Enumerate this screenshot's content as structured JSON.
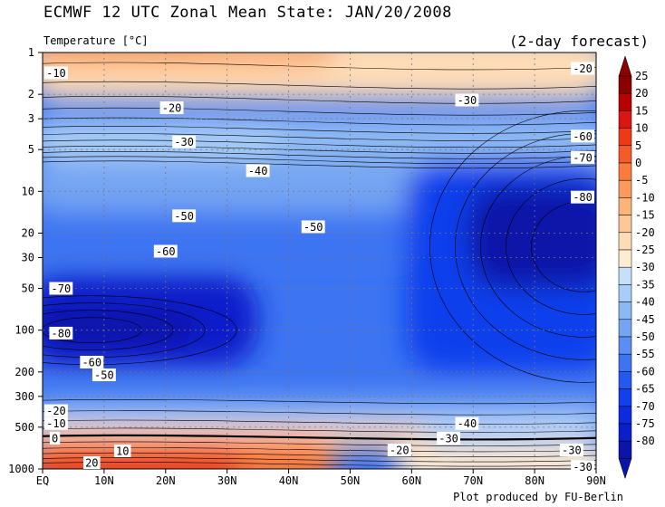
{
  "title": "ECMWF 12 UTC Zonal Mean State: JAN/20/2008",
  "subtitle": "Temperature [°C]",
  "forecast_label": "(2-day forecast)",
  "credit": "Plot produced by FU-Berlin",
  "chart_data": {
    "type": "heatmap",
    "title": "ECMWF 12 UTC Zonal Mean State: JAN/20/2008",
    "variable": "Temperature [°C]",
    "xlabel": "",
    "ylabel": "",
    "x_tick_labels": [
      "EQ",
      "10N",
      "20N",
      "30N",
      "40N",
      "50N",
      "60N",
      "70N",
      "80N",
      "90N"
    ],
    "x_ticks": [
      0,
      10,
      20,
      30,
      40,
      50,
      60,
      70,
      80,
      90
    ],
    "xlim": [
      0,
      90
    ],
    "y_tick_labels": [
      "1",
      "2",
      "3",
      "5",
      "10",
      "20",
      "30",
      "50",
      "100",
      "200",
      "300",
      "500",
      "1000"
    ],
    "y_ticks": [
      1,
      2,
      3,
      5,
      10,
      20,
      30,
      50,
      100,
      200,
      300,
      500,
      1000
    ],
    "ylim": [
      1,
      1000
    ],
    "y_scale": "log",
    "y_inverted": true,
    "grid": true,
    "colorbar_levels": [
      25,
      20,
      15,
      10,
      5,
      0,
      -5,
      -10,
      -15,
      -20,
      -25,
      -30,
      -35,
      -40,
      -45,
      -50,
      -55,
      -60,
      -65,
      -70,
      -75,
      -80
    ],
    "colorbar_colors": [
      "#8b0000",
      "#b80000",
      "#dc1414",
      "#ee3a14",
      "#f65a28",
      "#fa7c3c",
      "#fb9a5a",
      "#fcb47a",
      "#fdc898",
      "#fedcb6",
      "#feecd2",
      "#c6e0fa",
      "#a8cdf6",
      "#8cb8f4",
      "#74a4f2",
      "#5a8ef2",
      "#3c74f2",
      "#2458f2",
      "#1140ec",
      "#0a2be0",
      "#0a1fca",
      "#0a14a8"
    ],
    "contour_labels": [
      {
        "text": "-10",
        "lat": 2,
        "p": 1.4
      },
      {
        "text": "-20",
        "lat": 88,
        "p": 1.3
      },
      {
        "text": "-20",
        "lat": 21,
        "p": 2.5
      },
      {
        "text": "-30",
        "lat": 69,
        "p": 2.2
      },
      {
        "text": "-30",
        "lat": 23,
        "p": 4.4
      },
      {
        "text": "-40",
        "lat": 35,
        "p": 7.1
      },
      {
        "text": "-60",
        "lat": 90,
        "p": 4.0
      },
      {
        "text": "-70",
        "lat": 90,
        "p": 5.7
      },
      {
        "text": "-80",
        "lat": 90,
        "p": 11.0
      },
      {
        "text": "-50",
        "lat": 23,
        "p": 15.0
      },
      {
        "text": "-50",
        "lat": 44,
        "p": 18.0
      },
      {
        "text": "-60",
        "lat": 20,
        "p": 27.0
      },
      {
        "text": "-70",
        "lat": 3,
        "p": 50.0
      },
      {
        "text": "-80",
        "lat": 3,
        "p": 105.0
      },
      {
        "text": "-60",
        "lat": 8,
        "p": 170.0
      },
      {
        "text": "-50",
        "lat": 10,
        "p": 210.0
      },
      {
        "text": "-20",
        "lat": 2,
        "p": 380.0
      },
      {
        "text": "-10",
        "lat": 2,
        "p": 470.0
      },
      {
        "text": "0",
        "lat": 2,
        "p": 600.0
      },
      {
        "text": "10",
        "lat": 13,
        "p": 740.0
      },
      {
        "text": "20",
        "lat": 8,
        "p": 900.0
      },
      {
        "text": "-40",
        "lat": 69,
        "p": 470.0
      },
      {
        "text": "-30",
        "lat": 66,
        "p": 600.0
      },
      {
        "text": "-20",
        "lat": 58,
        "p": 730.0
      },
      {
        "text": "-30",
        "lat": 86,
        "p": 730.0
      },
      {
        "text": "-30",
        "lat": 89,
        "p": 960.0
      }
    ]
  }
}
